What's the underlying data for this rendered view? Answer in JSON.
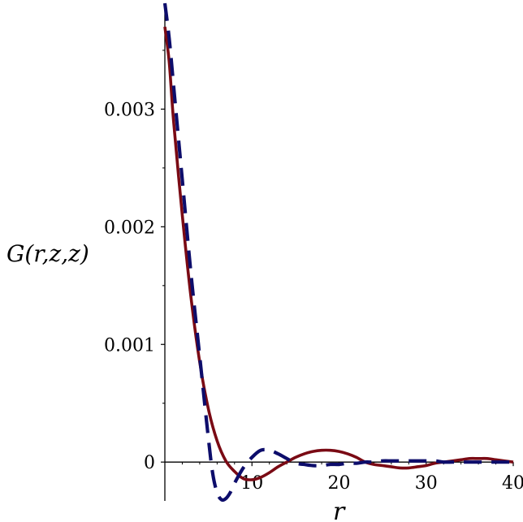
{
  "chart_data": {
    "type": "line",
    "xlabel": "r",
    "ylabel": "G(r,z,z)",
    "xlim": [
      0,
      40
    ],
    "ylim": [
      -0.00033,
      0.0039
    ],
    "x_ticks": [
      10,
      20,
      30,
      40
    ],
    "x_tick_labels": [
      "10",
      "20",
      "30",
      "40"
    ],
    "y_ticks": [
      0,
      0.001,
      0.002,
      0.003
    ],
    "y_tick_labels": [
      "0",
      "0.001",
      "0.002",
      "0.003"
    ],
    "grid": false,
    "legend": "none",
    "series": [
      {
        "style": "solid",
        "color": "#7a0a14",
        "x": [
          0,
          0.5,
          1,
          2,
          3,
          4,
          5,
          6,
          7,
          8,
          9,
          10,
          11,
          12,
          13,
          14,
          15,
          16,
          17,
          18,
          19,
          20,
          21,
          22,
          23,
          24,
          25,
          26,
          27,
          28,
          29,
          30,
          31,
          32,
          33,
          34,
          35,
          36,
          37,
          38,
          39,
          40
        ],
        "values": [
          0.0037,
          0.0034,
          0.0029,
          0.0021,
          0.0014,
          0.00085,
          0.00045,
          0.00018,
          1e-05,
          -8e-05,
          -0.00014,
          -0.00015,
          -0.00013,
          -9e-05,
          -4e-05,
          0.0,
          4e-05,
          7e-05,
          9e-05,
          0.0001,
          0.0001,
          9e-05,
          7e-05,
          4e-05,
          0.0,
          -2e-05,
          -3e-05,
          -4e-05,
          -5e-05,
          -5e-05,
          -4e-05,
          -3e-05,
          -1e-05,
          0.0,
          1e-05,
          2e-05,
          3e-05,
          3e-05,
          3e-05,
          2e-05,
          1e-05,
          0.0
        ]
      },
      {
        "style": "dashed",
        "color": "#0d0d6b",
        "x": [
          0,
          0.5,
          1,
          1.5,
          2,
          3,
          4,
          5,
          5.5,
          6,
          6.5,
          7,
          7.5,
          8,
          9,
          10,
          11,
          12,
          13,
          14,
          15,
          16,
          17,
          18,
          19,
          20,
          21,
          22,
          23,
          24,
          25,
          26,
          27,
          28,
          29,
          30,
          31,
          32,
          33,
          34,
          35,
          36,
          37,
          38,
          39,
          40
        ],
        "values": [
          0.0039,
          0.0036,
          0.0032,
          0.0028,
          0.0024,
          0.0016,
          0.0009,
          0.0002,
          -0.0001,
          -0.00026,
          -0.00032,
          -0.00031,
          -0.00026,
          -0.00018,
          -5e-05,
          4e-05,
          0.0001,
          0.0001,
          7e-05,
          3e-05,
          -1e-05,
          -2e-05,
          -3e-05,
          -3e-05,
          -2e-05,
          -2e-05,
          -1e-05,
          -1e-05,
          0.0,
          0.0,
          1e-05,
          1e-05,
          1e-05,
          1e-05,
          1e-05,
          1e-05,
          1e-05,
          0.0,
          0.0,
          0.0,
          0.0,
          0.0,
          0.0,
          0.0,
          0.0,
          0.0
        ]
      }
    ]
  }
}
